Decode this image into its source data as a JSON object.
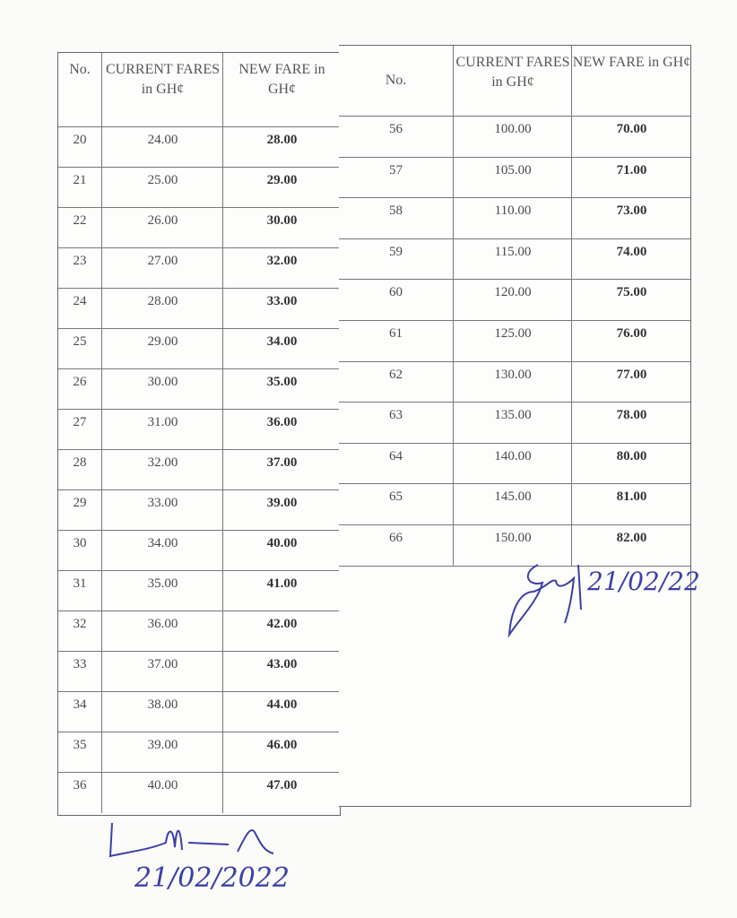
{
  "left_table": {
    "headers": [
      "No.",
      "CURRENT FARES in GH¢",
      "NEW FARE in GH¢"
    ],
    "rows": [
      [
        "20",
        "24.00",
        "28.00"
      ],
      [
        "21",
        "25.00",
        "29.00"
      ],
      [
        "22",
        "26.00",
        "30.00"
      ],
      [
        "23",
        "27.00",
        "32.00"
      ],
      [
        "24",
        "28.00",
        "33.00"
      ],
      [
        "25",
        "29.00",
        "34.00"
      ],
      [
        "26",
        "30.00",
        "35.00"
      ],
      [
        "27",
        "31.00",
        "36.00"
      ],
      [
        "28",
        "32.00",
        "37.00"
      ],
      [
        "29",
        "33.00",
        "39.00"
      ],
      [
        "30",
        "34.00",
        "40.00"
      ],
      [
        "31",
        "35.00",
        "41.00"
      ],
      [
        "32",
        "36.00",
        "42.00"
      ],
      [
        "33",
        "37.00",
        "43.00"
      ],
      [
        "34",
        "38.00",
        "44.00"
      ],
      [
        "35",
        "39.00",
        "46.00"
      ],
      [
        "36",
        "40.00",
        "47.00"
      ]
    ]
  },
  "right_table": {
    "headers": [
      "No.",
      "CURRENT FARES in GH¢",
      "NEW FARE in GH¢"
    ],
    "rows": [
      [
        "56",
        "100.00",
        "70.00"
      ],
      [
        "57",
        "105.00",
        "71.00"
      ],
      [
        "58",
        "110.00",
        "73.00"
      ],
      [
        "59",
        "115.00",
        "74.00"
      ],
      [
        "60",
        "120.00",
        "75.00"
      ],
      [
        "61",
        "125.00",
        "76.00"
      ],
      [
        "62",
        "130.00",
        "77.00"
      ],
      [
        "63",
        "135.00",
        "78.00"
      ],
      [
        "64",
        "140.00",
        "80.00"
      ],
      [
        "65",
        "145.00",
        "81.00"
      ],
      [
        "66",
        "150.00",
        "82.00"
      ]
    ]
  },
  "signatures": {
    "right_date": "21/02/22",
    "bottom_date": "21/02/2022"
  },
  "colors": {
    "ink": "#3b3fa8"
  }
}
